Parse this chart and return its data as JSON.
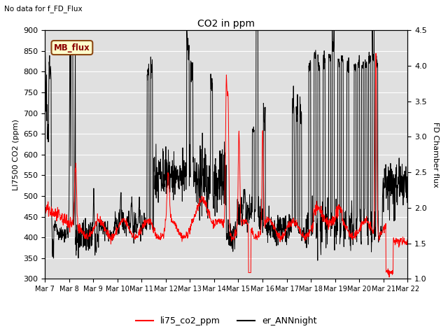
{
  "title": "CO2 in ppm",
  "no_data_text": "No data for f_FD_Flux",
  "ylabel_left": "LI7500 CO2 (ppm)",
  "ylabel_right": "FD Chamber flux",
  "ylim_left": [
    300,
    900
  ],
  "ylim_right": [
    1.0,
    4.5
  ],
  "legend_label1": "li75_co2_ppm",
  "legend_label2": "er_ANNnight",
  "legend_box_label": "MB_flux",
  "line_color_red": "#ff0000",
  "line_color_black": "#000000",
  "bg_color": "#e0e0e0",
  "tick_dates": [
    "Mar 7",
    "Mar 8",
    "Mar 9",
    "Mar 10",
    "Mar 11",
    "Mar 12",
    "Mar 13",
    "Mar 14",
    "Mar 15",
    "Mar 16",
    "Mar 17",
    "Mar 18",
    "Mar 19",
    "Mar 20",
    "Mar 21",
    "Mar 22"
  ],
  "yticks_left": [
    300,
    350,
    400,
    450,
    500,
    550,
    600,
    650,
    700,
    750,
    800,
    850,
    900
  ],
  "yticks_right": [
    1.0,
    1.5,
    2.0,
    2.5,
    3.0,
    3.5,
    4.0,
    4.5
  ]
}
